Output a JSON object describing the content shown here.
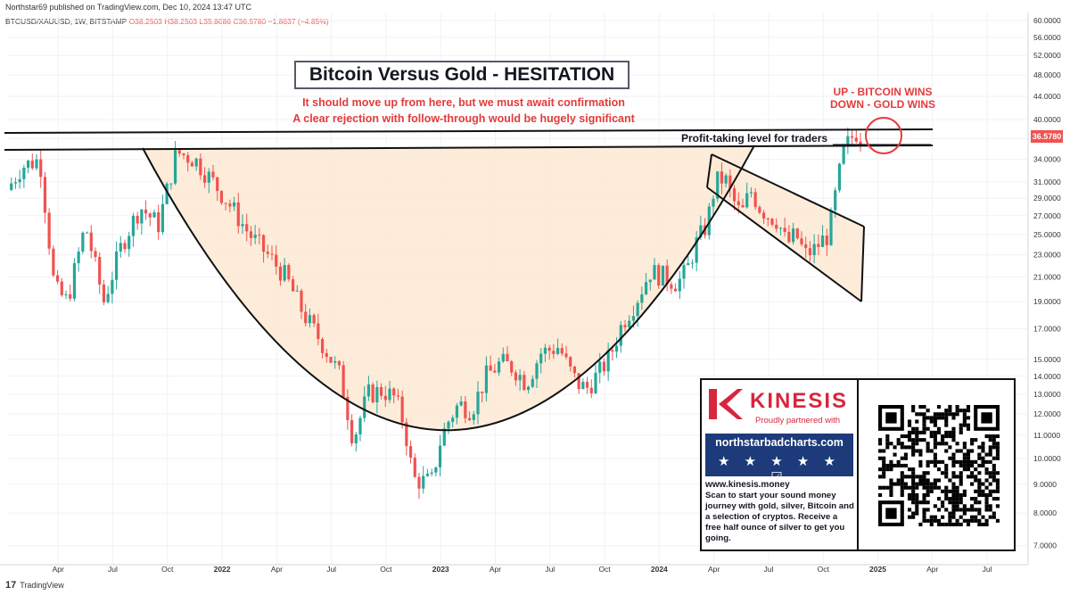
{
  "header": {
    "published": "Northstar69 published on TradingView.com, Dec 10, 2024 13:47 UTC",
    "symbol": "BTCUSD/XAUUSD, 1W, BITSTAMP",
    "ohlc_o": "O38.2503",
    "ohlc_h": "H38.2503",
    "ohlc_l": "L35.8686",
    "ohlc_c": "C36.5780",
    "change": "−1.8637 (−4.85%)"
  },
  "annotations": {
    "title": "Bitcoin Versus Gold - HESITATION",
    "note1": "It should move up from here, but we must await confirmation",
    "note2": "A clear rejection with follow-through would be hugely significant",
    "win_up": "UP - BITCOIN WINS",
    "win_down": "DOWN - GOLD WINS",
    "profit_level": "Profit-taking level for traders",
    "last_price": "36.5780"
  },
  "ad": {
    "brand": "KINESIS",
    "tagline": "Proudly partnered with",
    "site": "northstarbadcharts.com",
    "stars": "★ ★ ★ ★ ★ ☑",
    "url": "www.kinesis.money",
    "body": "Scan to start your sound money journey with gold, silver, Bitcoin and a selection of cryptos. Receive a free half ounce of silver to get you going."
  },
  "footer": {
    "brand": "TradingView",
    "logo_icon": "tradingview-logo-icon"
  },
  "colors": {
    "up": "#26a69a",
    "down": "#ef5350",
    "fill": "#fde9d2",
    "accent": "#e23b3b"
  },
  "chart_data": {
    "type": "candlestick",
    "y_scale": "log",
    "ylim": [
      6.5,
      62
    ],
    "y_ticks": [
      "60.0000",
      "56.0000",
      "52.0000",
      "48.0000",
      "44.0000",
      "40.0000",
      "37.0000",
      "34.0000",
      "31.0000",
      "29.0000",
      "27.0000",
      "25.0000",
      "23.0000",
      "21.0000",
      "19.0000",
      "17.0000",
      "15.0000",
      "14.0000",
      "13.0000",
      "12.0000",
      "11.0000",
      "10.0000",
      "9.0000",
      "8.0000",
      "7.0000"
    ],
    "y_tick_values": [
      60,
      56,
      52,
      48,
      44,
      40,
      37,
      34,
      31,
      29,
      27,
      25,
      23,
      21,
      19,
      17,
      15,
      14,
      13,
      12,
      11,
      10,
      9,
      8,
      7
    ],
    "x_labels": [
      "Apr",
      "Jul",
      "Oct",
      "2022",
      "Apr",
      "Jul",
      "Oct",
      "2023",
      "Apr",
      "Jul",
      "Oct",
      "2024",
      "Apr",
      "Jul",
      "Oct",
      "2025",
      "Apr",
      "Jul"
    ],
    "x_label_months": [
      3,
      6,
      9,
      12,
      15,
      18,
      21,
      24,
      27,
      30,
      33,
      36,
      39,
      42,
      45,
      48,
      51,
      54
    ],
    "x_range_months": [
      0.2,
      56.2
    ],
    "trend": [
      [
        0.2,
        30
      ],
      [
        1,
        33
      ],
      [
        2,
        34
      ],
      [
        2.8,
        20
      ],
      [
        3.5,
        19
      ],
      [
        4.5,
        26
      ],
      [
        5.5,
        19
      ],
      [
        6.5,
        24
      ],
      [
        7.5,
        28
      ],
      [
        8.5,
        26
      ],
      [
        9.5,
        35
      ],
      [
        10.5,
        34
      ],
      [
        11.5,
        31
      ],
      [
        12.5,
        28
      ],
      [
        13.5,
        25
      ],
      [
        14.5,
        23
      ],
      [
        15.5,
        21
      ],
      [
        16.5,
        18
      ],
      [
        17.5,
        16
      ],
      [
        18.5,
        14
      ],
      [
        19.2,
        10.8
      ],
      [
        20,
        13
      ],
      [
        20.8,
        13.2
      ],
      [
        21.5,
        12.8
      ],
      [
        22,
        11.5
      ],
      [
        22.5,
        9.2
      ],
      [
        23,
        9.1
      ],
      [
        23.5,
        9.1
      ],
      [
        24,
        10.8
      ],
      [
        24.5,
        11.8
      ],
      [
        25,
        12.5
      ],
      [
        25.7,
        12.2
      ],
      [
        26.5,
        14
      ],
      [
        27.3,
        14.8
      ],
      [
        28,
        14.5
      ],
      [
        28.7,
        13.6
      ],
      [
        29.5,
        15.4
      ],
      [
        30.5,
        15.8
      ],
      [
        31,
        14.5
      ],
      [
        31.5,
        13.6
      ],
      [
        32,
        13.3
      ],
      [
        32.7,
        14.2
      ],
      [
        33.3,
        15.2
      ],
      [
        34,
        17.5
      ],
      [
        34.7,
        19
      ],
      [
        35.5,
        21.5
      ],
      [
        36.3,
        21
      ],
      [
        37,
        20.5
      ],
      [
        37.5,
        21.5
      ],
      [
        38,
        24
      ],
      [
        38.6,
        26
      ],
      [
        39.1,
        31
      ],
      [
        39.6,
        31.5
      ],
      [
        40,
        29
      ],
      [
        40.5,
        27
      ],
      [
        41,
        30
      ],
      [
        41.5,
        28
      ],
      [
        42,
        27
      ],
      [
        42.5,
        26.5
      ],
      [
        43,
        24
      ],
      [
        43.5,
        25
      ],
      [
        44,
        23
      ],
      [
        44.5,
        23.5
      ],
      [
        45,
        24.5
      ],
      [
        45.3,
        25
      ],
      [
        45.8,
        31
      ],
      [
        46.1,
        35
      ],
      [
        46.5,
        37
      ],
      [
        46.9,
        38.2
      ],
      [
        47.2,
        36.58
      ]
    ]
  }
}
